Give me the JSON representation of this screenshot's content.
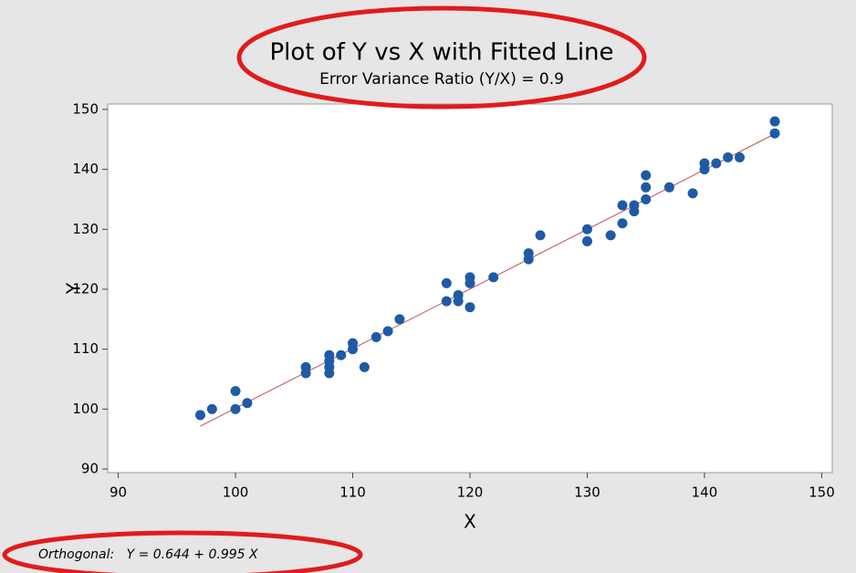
{
  "chart_data": {
    "type": "scatter",
    "title": "Plot of Y vs X with Fitted Line",
    "subtitle": "Error Variance Ratio (Y/X) = 0.9",
    "x_label": "X",
    "y_label": "Y",
    "annotation": "Orthogonal:   Y = 0.644 + 0.995 X",
    "x": [
      97,
      98,
      100,
      100,
      101,
      106,
      106,
      108,
      108,
      108,
      108,
      109,
      110,
      110,
      111,
      112,
      113,
      114,
      118,
      118,
      119,
      119,
      120,
      120,
      120,
      122,
      125,
      125,
      126,
      130,
      130,
      132,
      133,
      133,
      134,
      134,
      135,
      135,
      135,
      137,
      139,
      140,
      140,
      141,
      142,
      143,
      146,
      146
    ],
    "values": [
      99,
      100,
      103,
      100,
      101,
      107,
      106,
      109,
      108,
      107,
      106,
      109,
      111,
      110,
      107,
      112,
      113,
      115,
      121,
      118,
      119,
      118,
      122,
      121,
      117,
      122,
      126,
      125,
      129,
      130,
      128,
      129,
      134,
      131,
      134,
      133,
      139,
      137,
      135,
      137,
      136,
      141,
      140,
      141,
      142,
      142,
      148,
      146
    ],
    "color": "#1f5aa6",
    "fit_line": {
      "x": [
        97,
        146
      ],
      "values": [
        97.159,
        145.914
      ],
      "color": "#c0504d"
    },
    "xlim": [
      89.1,
      150.9
    ],
    "xticks": [
      90,
      100,
      110,
      120,
      130,
      140,
      150
    ],
    "ylim": [
      89.4,
      150.9
    ],
    "yticks": [
      90,
      100,
      110,
      120,
      130,
      140,
      150
    ]
  }
}
